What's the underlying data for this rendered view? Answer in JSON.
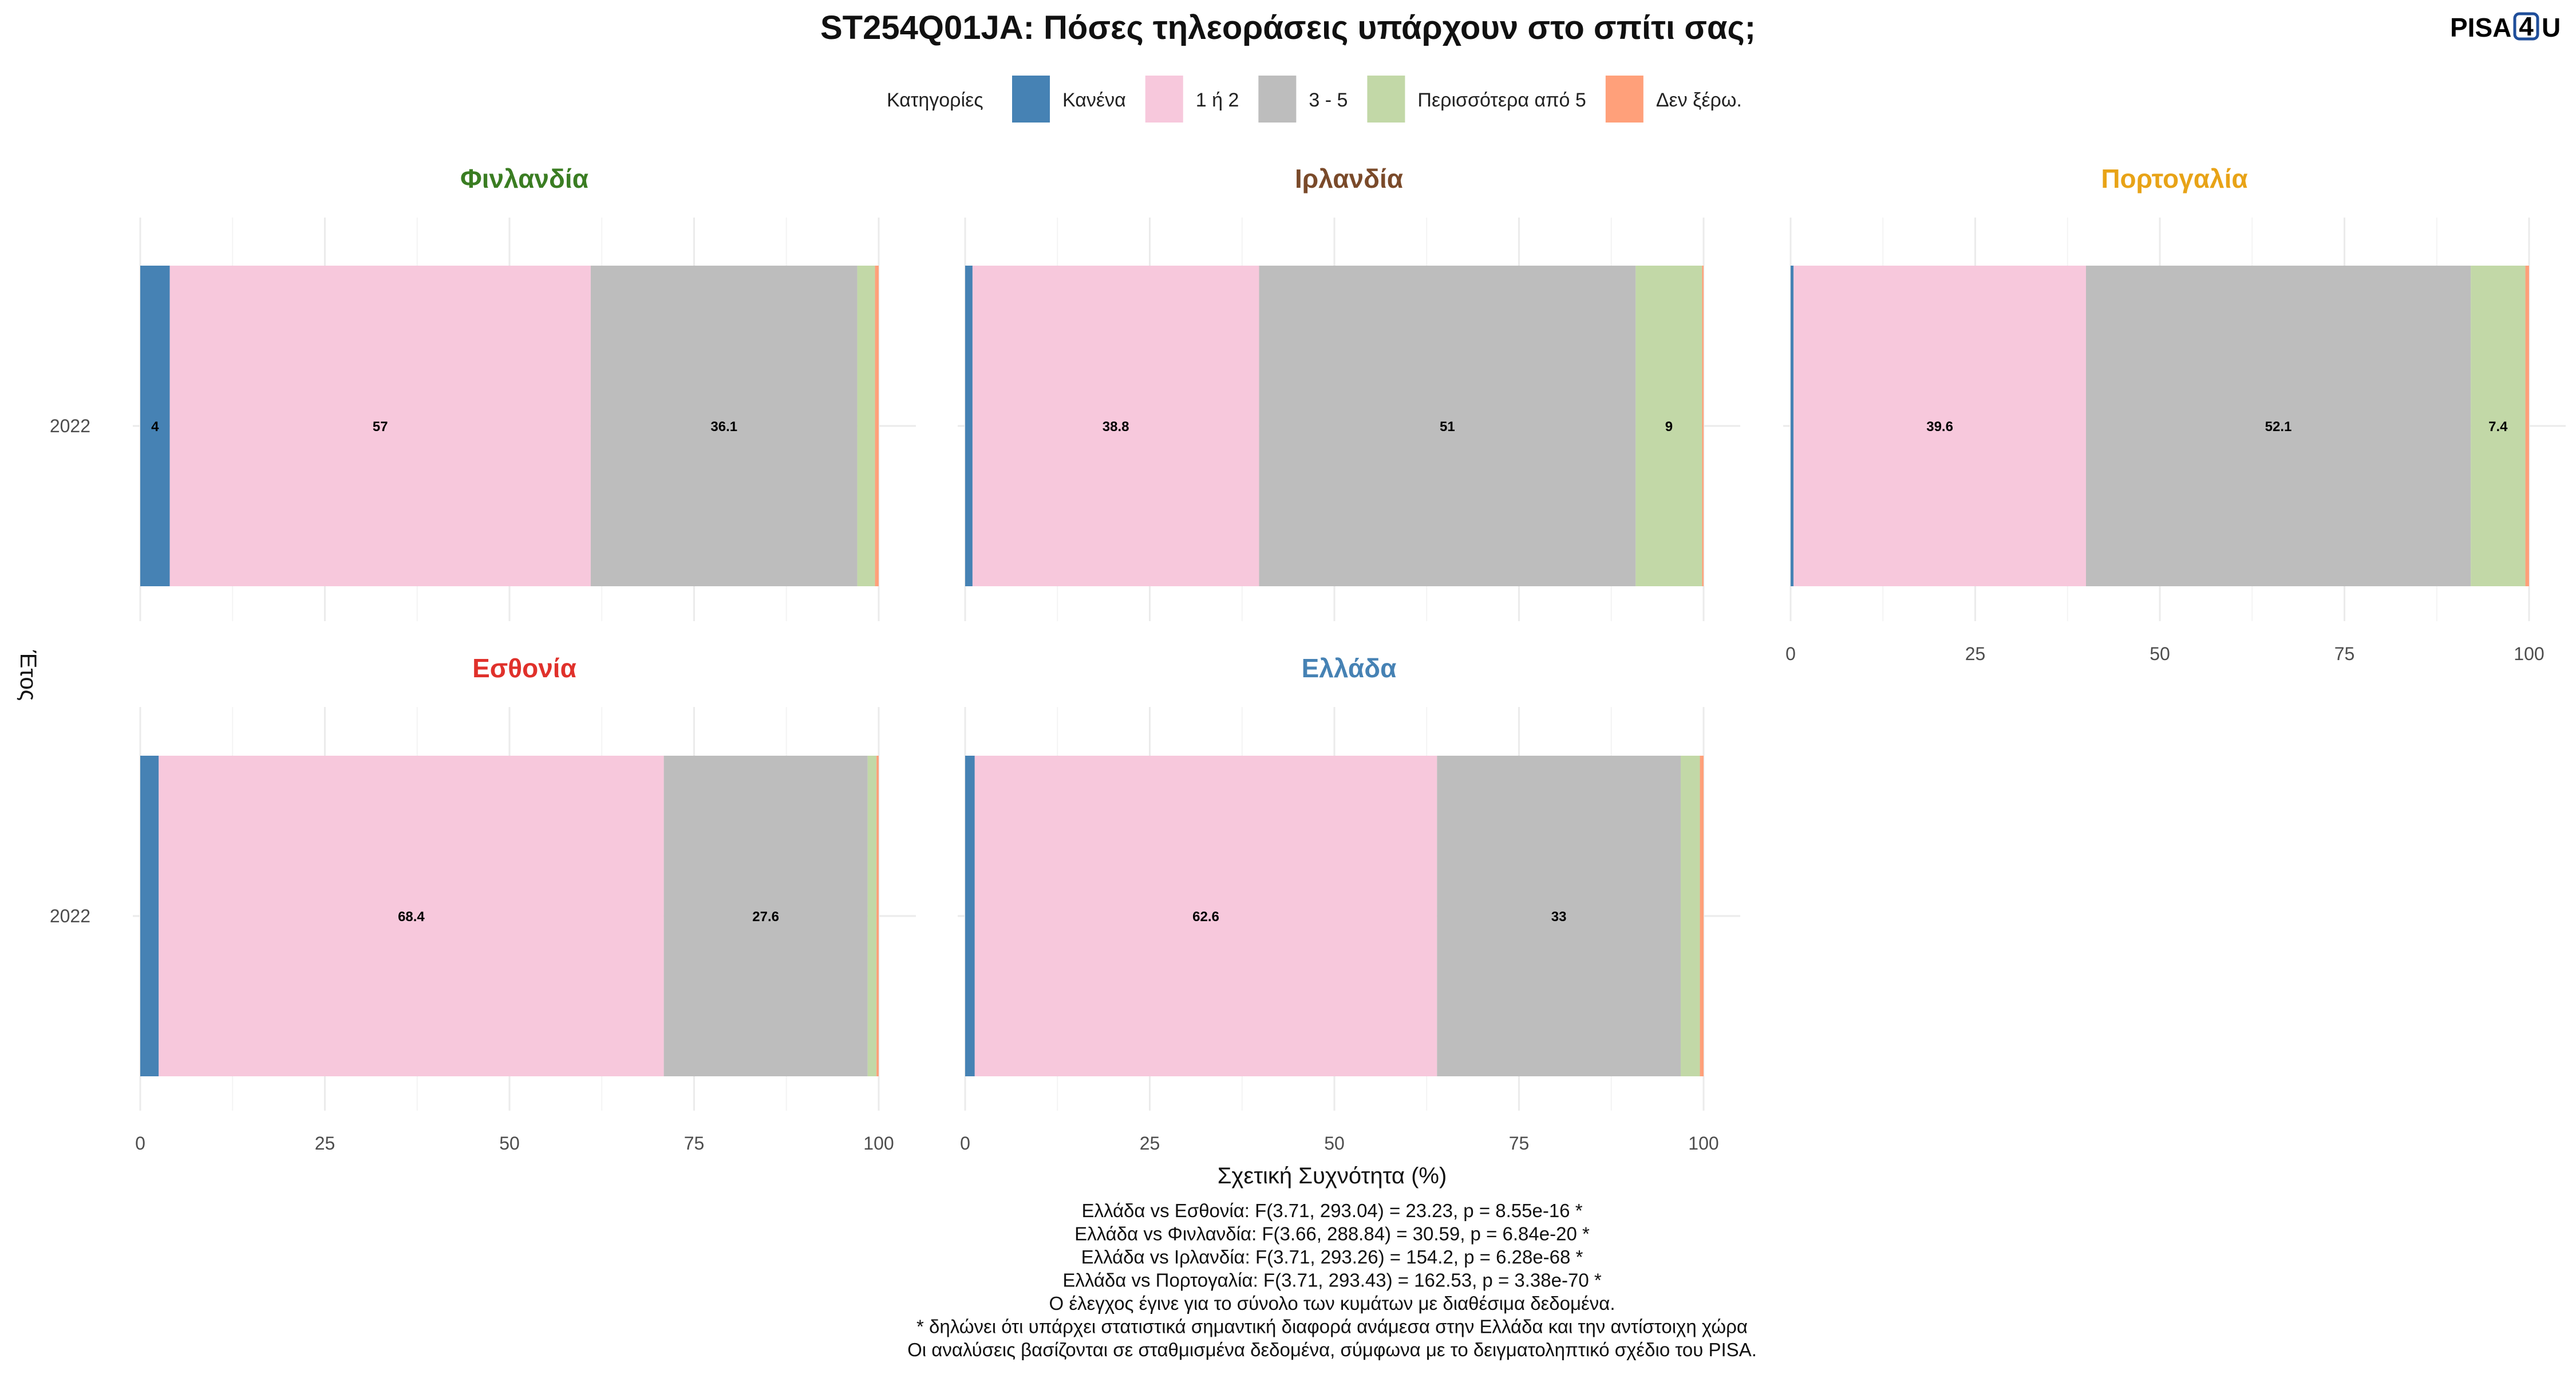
{
  "chart_data": {
    "type": "bar",
    "orientation": "horizontal-stacked",
    "title": "ST254Q01JA: Πόσες τηλεοράσεις υπάρχουν στο σπίτι σας;",
    "legend": {
      "title": "Κατηγορίες",
      "placement": "top",
      "items": [
        {
          "label": "Κανένα",
          "color": "#4682B4"
        },
        {
          "label": "1 ή 2",
          "color": "#F7C8DC"
        },
        {
          "label": "3 - 5",
          "color": "#BDBDBD"
        },
        {
          "label": "Περισσότερα από 5",
          "color": "#C2D8A7"
        },
        {
          "label": "Δεν ξέρω.",
          "color": "#FFA07A"
        }
      ]
    },
    "xlabel": "Σχετική Συχνότητα (%)",
    "ylabel": "Έτος",
    "xlim": [
      0,
      100
    ],
    "xticks": [
      "0",
      "25",
      "50",
      "75",
      "100"
    ],
    "grid": true,
    "facets": [
      {
        "name": "Φινλανδία",
        "title_color": "#3A7D22",
        "year": "2022",
        "values": [
          4,
          57,
          36.1,
          2.4,
          0.5
        ],
        "labels": [
          "4",
          "57",
          "36.1",
          "",
          ""
        ]
      },
      {
        "name": "Ιρλανδία",
        "title_color": "#7A4A2A",
        "year": "2022",
        "values": [
          1,
          38.8,
          51,
          9,
          0.2
        ],
        "labels": [
          "",
          "38.8",
          "51",
          "9",
          ""
        ]
      },
      {
        "name": "Πορτογαλία",
        "title_color": "#E8A317",
        "year": "2022",
        "values": [
          0.4,
          39.6,
          52.1,
          7.4,
          0.5
        ],
        "labels": [
          "",
          "39.6",
          "52.1",
          "7.4",
          ""
        ]
      },
      {
        "name": "Εσθονία",
        "title_color": "#E0312B",
        "year": "2022",
        "values": [
          2.5,
          68.4,
          27.6,
          1.2,
          0.3
        ],
        "labels": [
          "",
          "68.4",
          "27.6",
          "",
          ""
        ]
      },
      {
        "name": "Ελλάδα",
        "title_color": "#4682B4",
        "year": "2022",
        "values": [
          1.3,
          62.6,
          33,
          2.6,
          0.5
        ],
        "labels": [
          "",
          "62.6",
          "33",
          "",
          ""
        ]
      }
    ],
    "footnotes": [
      "Ελλάδα vs Εσθονία: F(3.71, 293.04) = 23.23, p = 8.55e-16 *",
      "Ελλάδα vs Φινλανδία: F(3.66, 288.84) = 30.59, p = 6.84e-20 *",
      "Ελλάδα vs Ιρλανδία: F(3.71, 293.26) = 154.2, p = 6.28e-68 *",
      "Ελλάδα vs Πορτογαλία: F(3.71, 293.43) = 162.53, p = 3.38e-70 *",
      "Ο έλεγχος έγινε για το σύνολο των κυμάτων με διαθέσιμα δεδομένα.",
      "* δηλώνει ότι υπάρχει στατιστικά σημαντική διαφορά ανάμεσα στην Ελλάδα και την αντίστοιχη χώρα",
      "Οι αναλύσεις βασίζονται σε σταθμισμένα δεδομένα, σύμφωνα με το δειγματοληπτικό σχέδιο του PISA."
    ]
  },
  "logo": {
    "text_a": "PISA",
    "text_b": "4",
    "text_c": "U",
    "color_a": "#E0312B",
    "color_b": "#1F4E9A",
    "color_c": "#3AA935"
  }
}
